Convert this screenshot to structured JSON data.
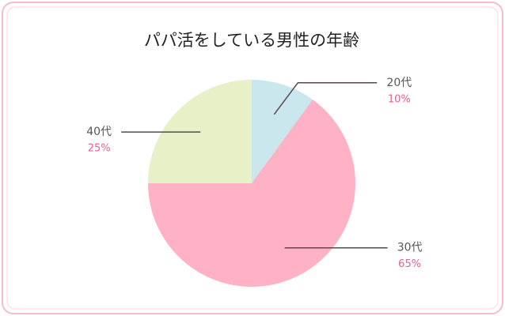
{
  "chart_data": {
    "type": "pie",
    "title": "パパ活をしている男性の年齢",
    "categories": [
      "20代",
      "30代",
      "40代"
    ],
    "values": [
      10,
      65,
      25
    ],
    "value_labels": [
      "10%",
      "65%",
      "25%"
    ],
    "colors": [
      "#c9e7ec",
      "#ffb1c6",
      "#e7f0c6"
    ]
  }
}
